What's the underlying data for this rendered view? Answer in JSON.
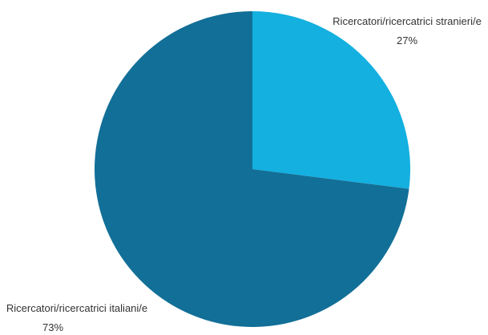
{
  "chart_data": {
    "type": "pie",
    "title": "",
    "slices": [
      {
        "label": "Ricercatori/ricercatrici stranieri/e",
        "value": 27,
        "value_label": "27%",
        "color": "#13b0e0"
      },
      {
        "label": "Ricercatori/ricercatrici italiani/e",
        "value": 73,
        "value_label": "73%",
        "color": "#126f97"
      }
    ],
    "start_angle_deg": 0,
    "direction": "clockwise",
    "legend": "none"
  }
}
